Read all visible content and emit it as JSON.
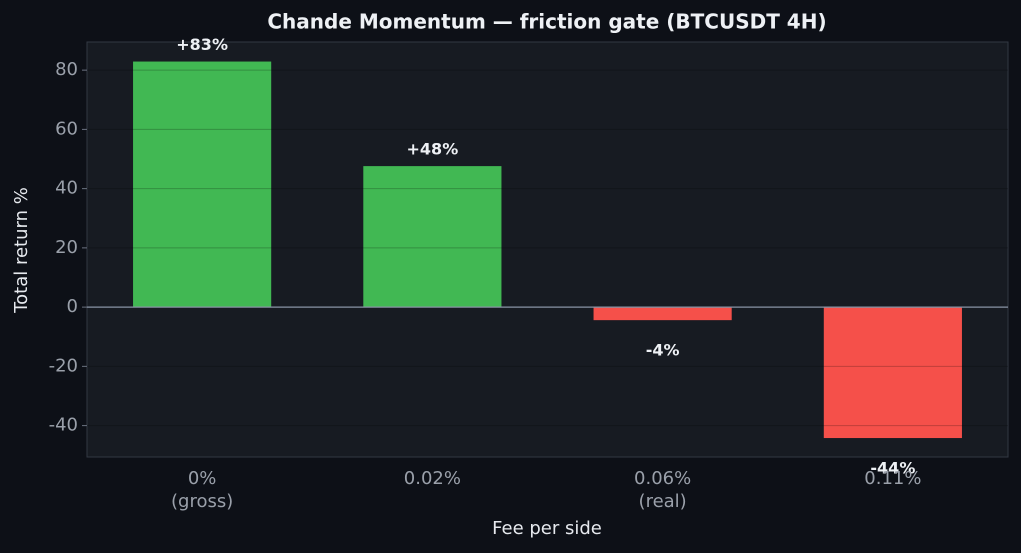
{
  "chart_data": {
    "type": "bar",
    "title": "Chande Momentum — friction gate (BTCUSDT 4H)",
    "xlabel": "Fee per side",
    "ylabel": "Total return %",
    "categories": [
      "0%\n(gross)",
      "0.02%",
      "0.06%\n(real)",
      "0.11%"
    ],
    "values": [
      82.9,
      47.6,
      -4.4,
      -44.2
    ],
    "value_labels": [
      "+83%",
      "+48%",
      "-4%",
      "-44%"
    ],
    "colors": [
      "#41b853",
      "#41b853",
      "#f5504a",
      "#f5504a"
    ],
    "ylim": [
      -50.6,
      89.5
    ],
    "yticks": [
      -40,
      -20,
      0,
      20,
      40,
      60,
      80
    ],
    "grid": true
  }
}
